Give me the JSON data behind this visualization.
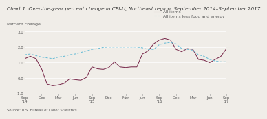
{
  "title": "Chart 1. Over-the-year percent change in CPI-U, Northeast region, September 2014–September 2017",
  "ylabel": "Percent change",
  "source": "Source: U.S. Bureau of Labor Statistics.",
  "ylim": [
    -1.0,
    3.0
  ],
  "yticks": [
    -1.0,
    0.0,
    1.0,
    2.0,
    3.0
  ],
  "x_labels": [
    "Sep\n'14",
    "Dec",
    "Mar",
    "Jun",
    "Sep\n'15",
    "Dec",
    "Mar",
    "Jun",
    "Sep\n'16",
    "Dec",
    "Mar",
    "Jun",
    "Sep\n'17"
  ],
  "all_items": [
    1.25,
    1.4,
    1.25,
    0.6,
    -0.4,
    -0.5,
    -0.45,
    -0.35,
    -0.05,
    -0.1,
    -0.14,
    0.04,
    0.72,
    0.6,
    0.56,
    0.68,
    1.05,
    0.72,
    0.68,
    0.72,
    0.72,
    1.55,
    1.75,
    2.2,
    2.45,
    2.55,
    2.45,
    1.85,
    1.7,
    1.9,
    1.85,
    1.2,
    1.15,
    1.0,
    1.2,
    1.4,
    1.9
  ],
  "core_items": [
    1.5,
    1.55,
    1.45,
    1.35,
    1.3,
    1.25,
    1.35,
    1.4,
    1.5,
    1.55,
    1.65,
    1.75,
    1.85,
    1.9,
    1.98,
    2.0,
    2.0,
    2.0,
    2.0,
    2.0,
    2.0,
    1.95,
    1.85,
    1.85,
    2.15,
    2.25,
    2.3,
    2.2,
    1.9,
    1.85,
    1.8,
    1.5,
    1.4,
    1.2,
    1.1,
    1.05,
    1.05
  ],
  "all_items_color": "#7b2d4e",
  "core_items_color": "#6bbdd6",
  "bg_color": "#f0ede8",
  "grid_color": "#ffffff",
  "spine_color": "#aaaaaa",
  "title_color": "#333333",
  "tick_color": "#555555",
  "title_fontsize": 5.2,
  "ylabel_fontsize": 4.5,
  "tick_fontsize": 4.0,
  "legend_fontsize": 4.2,
  "source_fontsize": 3.8
}
